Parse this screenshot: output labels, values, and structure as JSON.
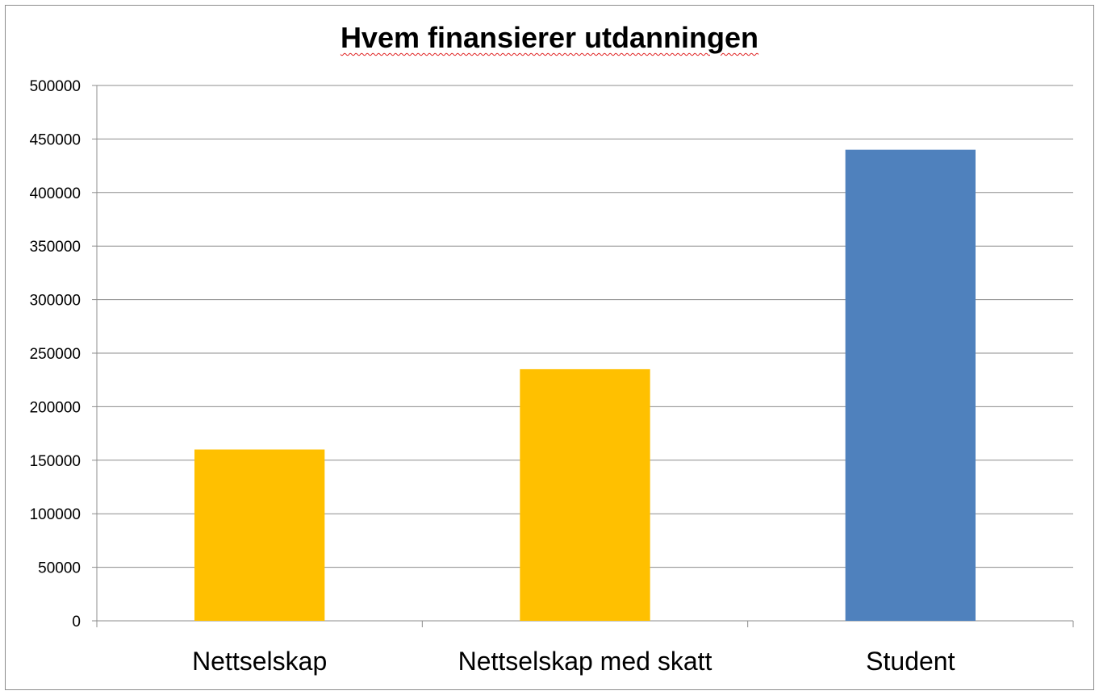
{
  "chart_data": {
    "type": "bar",
    "title": "Hvem finansierer utdanningen",
    "categories": [
      "Nettselskap",
      "Nettselskap med skatt",
      "Student"
    ],
    "values": [
      160000,
      235000,
      440000
    ],
    "colors": [
      "#FFC000",
      "#FFC000",
      "#4F81BD"
    ],
    "ylim": [
      0,
      500000
    ],
    "yticks": [
      "0",
      "50000",
      "100000",
      "150000",
      "200000",
      "250000",
      "300000",
      "350000",
      "400000",
      "450000",
      "500000"
    ],
    "grid": true,
    "legend": "none",
    "xlabel": "",
    "ylabel": ""
  }
}
